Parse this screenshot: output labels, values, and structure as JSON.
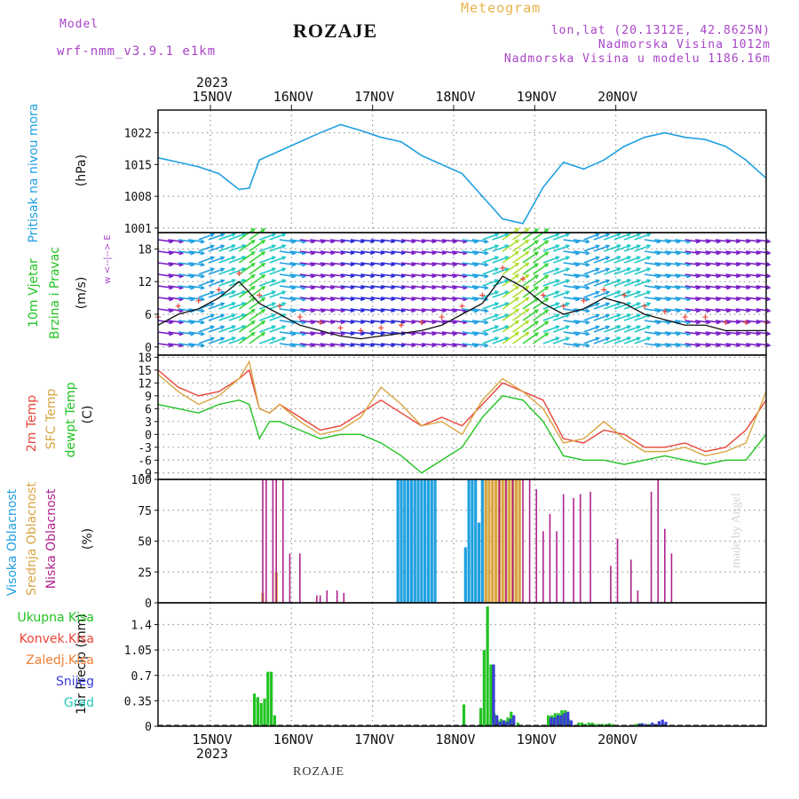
{
  "header": {
    "model_label": "Model",
    "model_name": "wrf-nmm_v3.9.1  e1km",
    "station": "ROZAJE",
    "product": "Meteogram",
    "lonlat": "lon,lat (20.1312E, 42.8625N)",
    "altitude": "Nadmorska Visina 1012m",
    "model_altitude": "Nadmorska Visina u modelu 1186.16m",
    "footer_station": "ROZAJE",
    "credit": "made by Angel"
  },
  "colors": {
    "pressure": "#1fa0e0",
    "temp2m": "#e8453a",
    "sfc_temp": "#d9a441",
    "dewpt": "#22c322",
    "high_cloud": "#1fa0e0",
    "mid_cloud": "#d9a441",
    "low_cloud": "#b0228c",
    "total_precip": "#22c322",
    "conv_precip": "#e8453a",
    "frozen_precip": "#ef7d33",
    "snow": "#3b3bd8",
    "graupel": "#22c8b8",
    "purple_text": "#a844c8",
    "orange_text": "#e8b44a"
  },
  "chart_data": [
    {
      "type": "line",
      "panel": "pressure",
      "ylabel_lines": [
        "Pritisak na nivou mora",
        "(hPa)"
      ],
      "ylim": [
        1000,
        1027
      ],
      "yticks": [
        1001,
        1008,
        1015,
        1022
      ],
      "x_top_labels": [
        "15NOV",
        "16NOV",
        "17NOV",
        "18NOV",
        "19NOV",
        "20NOV"
      ],
      "x_top_year": "2023",
      "x_hours": [
        0,
        6,
        12,
        18,
        24,
        27,
        30,
        36,
        42,
        48,
        54,
        60,
        66,
        72,
        78,
        84,
        90,
        96,
        102,
        108,
        114,
        120,
        126,
        132,
        138,
        144,
        150,
        156,
        162,
        168,
        174,
        180
      ],
      "values": [
        1016.5,
        1015.5,
        1014.5,
        1013,
        1009.5,
        1009.8,
        1016,
        1018,
        1020,
        1022,
        1023.8,
        1022.5,
        1021,
        1020,
        1017,
        1015,
        1013,
        1008,
        1003,
        1002,
        1010,
        1015.5,
        1014,
        1016,
        1019,
        1021,
        1022,
        1021,
        1020.5,
        1019,
        1016,
        1012
      ]
    },
    {
      "type": "line",
      "panel": "wind",
      "ylabel_lines": [
        "10m Vjetar",
        "Brzina i Pravac",
        "(m/s)"
      ],
      "compass_label": "w <--|--> E",
      "ylim": [
        -1.5,
        21
      ],
      "yticks": [
        0,
        6,
        12,
        18
      ],
      "x_hours": [
        0,
        6,
        12,
        18,
        24,
        30,
        36,
        42,
        48,
        54,
        60,
        66,
        72,
        78,
        84,
        90,
        96,
        102,
        108,
        114,
        120,
        126,
        132,
        138,
        144,
        150,
        156,
        162,
        168,
        174,
        180
      ],
      "speed": [
        4,
        6,
        7,
        9,
        12,
        8,
        6,
        4,
        3,
        2,
        1.5,
        2,
        2.5,
        3,
        4,
        6,
        8,
        13,
        11,
        8,
        6,
        7,
        9,
        8,
        6,
        5,
        4,
        4,
        3,
        3,
        3
      ]
    },
    {
      "type": "line",
      "panel": "temperature",
      "ylabel_lines": [
        "2m Temp",
        "SFC Temp",
        "dewpt Temp",
        "(C)"
      ],
      "ylim": [
        -10.5,
        18.5
      ],
      "yticks": [
        -9,
        -6,
        -3,
        0,
        3,
        6,
        9,
        12,
        15,
        18
      ],
      "x_hours": [
        0,
        6,
        12,
        18,
        24,
        27,
        30,
        33,
        36,
        42,
        48,
        54,
        60,
        66,
        72,
        78,
        84,
        90,
        96,
        102,
        108,
        114,
        120,
        126,
        132,
        138,
        144,
        150,
        156,
        162,
        168,
        174,
        180
      ],
      "series": [
        {
          "name": "2m Temp",
          "values": [
            15,
            11,
            9,
            10,
            13,
            15,
            6,
            5,
            7,
            4,
            1,
            2,
            5,
            8,
            5,
            2,
            4,
            2,
            7,
            12,
            10,
            8,
            -1,
            -2,
            1,
            0,
            -3,
            -3,
            -2,
            -4,
            -3,
            1,
            8
          ]
        },
        {
          "name": "SFC Temp",
          "values": [
            14,
            10,
            7,
            9,
            13,
            17,
            6,
            5,
            7,
            3,
            0,
            1,
            4,
            11,
            7,
            2,
            3,
            0,
            8,
            13,
            10,
            6,
            -2,
            -1,
            3,
            -1,
            -4,
            -4,
            -3,
            -5,
            -4,
            -2,
            10
          ]
        },
        {
          "name": "dewpt Temp",
          "values": [
            7,
            6,
            5,
            7,
            8,
            7,
            -1,
            3,
            3,
            1,
            -1,
            0,
            0,
            -2,
            -5,
            -9,
            -6,
            -3,
            4,
            9,
            8,
            3,
            -5,
            -6,
            -6,
            -7,
            -6,
            -5,
            -6,
            -7,
            -6,
            -6,
            0
          ]
        }
      ]
    },
    {
      "type": "bar",
      "panel": "cloud",
      "ylabel_lines": [
        "Visoka Oblacnost",
        "Srednja Oblacnost",
        "Niska Oblacnost",
        "(%)"
      ],
      "ylim": [
        0,
        100
      ],
      "yticks": [
        0,
        25,
        50,
        75,
        100
      ],
      "series": [
        {
          "name": "Visoka Oblacnost",
          "x_hours": [
            71,
            72,
            73,
            74,
            75,
            76,
            77,
            78,
            79,
            80,
            81,
            82,
            91,
            92,
            93,
            94,
            95,
            96,
            97
          ],
          "values": [
            100,
            100,
            100,
            100,
            100,
            100,
            100,
            100,
            100,
            100,
            100,
            100,
            45,
            100,
            100,
            100,
            65,
            100,
            100
          ]
        },
        {
          "name": "Srednja Oblacnost",
          "x_hours": [
            31,
            35,
            97,
            98,
            99,
            100,
            101,
            102,
            103,
            104,
            105,
            106,
            107
          ],
          "values": [
            8,
            25,
            100,
            100,
            100,
            100,
            100,
            100,
            100,
            100,
            100,
            100,
            100
          ]
        },
        {
          "name": "Niska Oblacnost",
          "x_hours": [
            31,
            32,
            34,
            35,
            37,
            39,
            42,
            47,
            48,
            50,
            53,
            55,
            101,
            103,
            105,
            108,
            110,
            112,
            114,
            116,
            118,
            120,
            123,
            125,
            128,
            134,
            136,
            140,
            142,
            146,
            148,
            150,
            152
          ],
          "values": [
            100,
            100,
            100,
            100,
            100,
            40,
            40,
            6,
            6,
            10,
            10,
            8,
            100,
            100,
            100,
            100,
            100,
            92,
            58,
            72,
            58,
            88,
            85,
            88,
            90,
            30,
            52,
            35,
            10,
            90,
            100,
            60,
            40
          ]
        }
      ]
    },
    {
      "type": "bar",
      "panel": "precip",
      "ylabel_lines": [
        "Ukupna Kisa",
        "Konvek.Kisa",
        "Zaledj.Kisa",
        "Snijeg",
        "Grad",
        "1hr Precip (mm)"
      ],
      "ylim": [
        0,
        1.7
      ],
      "yticks": [
        0,
        0.35,
        0.7,
        1.05,
        1.4
      ],
      "yticklabels": [
        "0",
        "0.35",
        "0.7",
        "1.05",
        "1.4"
      ],
      "x_bottom_labels": [
        "15NOV",
        "16NOV",
        "17NOV",
        "18NOV",
        "19NOV",
        "20NOV"
      ],
      "x_bottom_year": "2023",
      "series": [
        {
          "name": "Ukupna Kisa",
          "x_hours": [
            29,
            30,
            31,
            32,
            33,
            34,
            35,
            36,
            91,
            96,
            97,
            98,
            99,
            100,
            101,
            102,
            103,
            104,
            105,
            107,
            116,
            117,
            118,
            119,
            120,
            121,
            122,
            125,
            126,
            127,
            128,
            129,
            130,
            131,
            132,
            133,
            134,
            135,
            142,
            143,
            144,
            145,
            146,
            147,
            148,
            149,
            150,
            151,
            152
          ],
          "values": [
            0.45,
            0.4,
            0.32,
            0.38,
            0.75,
            0.75,
            0.15,
            0.02,
            0.3,
            0.25,
            1.05,
            1.65,
            0.85,
            0.18,
            0.08,
            0.1,
            0.08,
            0.12,
            0.2,
            0.05,
            0.15,
            0.15,
            0.18,
            0.18,
            0.22,
            0.22,
            0.1,
            0.05,
            0.05,
            0.03,
            0.05,
            0.05,
            0.03,
            0.03,
            0.03,
            0.03,
            0.04,
            0.03,
            0.03,
            0.04,
            0.03,
            0.02,
            0.03,
            0.02,
            0.02,
            0.03,
            0.02,
            0.01,
            0.01
          ]
        },
        {
          "name": "Snijeg",
          "x_hours": [
            99,
            100,
            101,
            102,
            103,
            104,
            105,
            116,
            117,
            118,
            119,
            120,
            121,
            122,
            142,
            143,
            144,
            145,
            146,
            147,
            148,
            149,
            150,
            151,
            152
          ],
          "values": [
            0.85,
            0.15,
            0.06,
            0.08,
            0.06,
            0.1,
            0.15,
            0.12,
            0.12,
            0.15,
            0.15,
            0.18,
            0.2,
            0.08,
            0.03,
            0.04,
            0.03,
            0.02,
            0.05,
            0.03,
            0.07,
            0.09,
            0.06,
            0.01,
            0.01
          ]
        }
      ]
    }
  ]
}
